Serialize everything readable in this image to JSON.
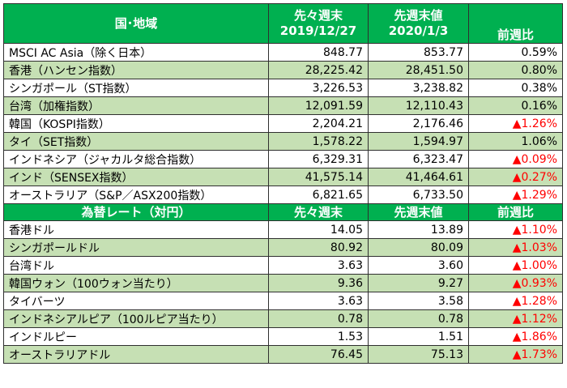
{
  "stocks": {
    "header": {
      "region": "国･地域",
      "prev2": "先々週末",
      "prev2_date": "2019/12/27",
      "prev1": "先週末値",
      "prev1_date": "2020/1/3",
      "change": "前週比"
    },
    "rows": [
      {
        "name": "MSCI AC Asia（除く日本）",
        "prev2": "848.77",
        "prev1": "853.77",
        "change": "0.59%"
      },
      {
        "name": "香港（ハンセン指数）",
        "prev2": "28,225.42",
        "prev1": "28,451.50",
        "change": "0.80%"
      },
      {
        "name": "シンガポール（ST指数）",
        "prev2": "3,226.53",
        "prev1": "3,238.82",
        "change": "0.38%"
      },
      {
        "name": "台湾（加権指数）",
        "prev2": "12,091.59",
        "prev1": "12,110.43",
        "change": "0.16%"
      },
      {
        "name": "韓国（KOSPI指数）",
        "prev2": "2,204.21",
        "prev1": "2,176.46",
        "change": "▲1.26%"
      },
      {
        "name": "タイ（SET指数）",
        "prev2": "1,578.22",
        "prev1": "1,594.97",
        "change": "1.06%"
      },
      {
        "name": "インドネシア（ジャカルタ総合指数）",
        "prev2": "6,329.31",
        "prev1": "6,323.47",
        "change": "▲0.09%"
      },
      {
        "name": "インド（SENSEX指数）",
        "prev2": "41,575.14",
        "prev1": "41,464.61",
        "change": "▲0.27%"
      },
      {
        "name": "オーストラリア（S&P／ASX200指数）",
        "prev2": "6,821.65",
        "prev1": "6,733.50",
        "change": "▲1.29%"
      }
    ]
  },
  "fx": {
    "header": {
      "title": "為替レート（対円）",
      "prev2": "先々週末",
      "prev1": "先週末値",
      "change": "前週比"
    },
    "rows": [
      {
        "name": "香港ドル",
        "prev2": "14.05",
        "prev1": "13.89",
        "change": "▲1.10%"
      },
      {
        "name": "シンガポールドル",
        "prev2": "80.92",
        "prev1": "80.09",
        "change": "▲1.03%"
      },
      {
        "name": "台湾ドル",
        "prev2": "3.63",
        "prev1": "3.60",
        "change": "▲1.00%"
      },
      {
        "name": "韓国ウォン（100ウォン当たり）",
        "prev2": "9.36",
        "prev1": "9.27",
        "change": "▲0.93%"
      },
      {
        "name": "タイバーツ",
        "prev2": "3.63",
        "prev1": "3.58",
        "change": "▲1.28%"
      },
      {
        "name": "インドネシアルピア（100ルピア当たり）",
        "prev2": "0.78",
        "prev1": "0.78",
        "change": "▲1.12%"
      },
      {
        "name": "インドルピー",
        "prev2": "1.53",
        "prev1": "1.51",
        "change": "▲1.86%"
      },
      {
        "name": "オーストラリアドル",
        "prev2": "76.45",
        "prev1": "75.13",
        "change": "▲1.73%"
      }
    ]
  },
  "colors": {
    "header_green": "#00b050",
    "row_alt": "#c6e0b4",
    "negative": "#ff0000"
  }
}
